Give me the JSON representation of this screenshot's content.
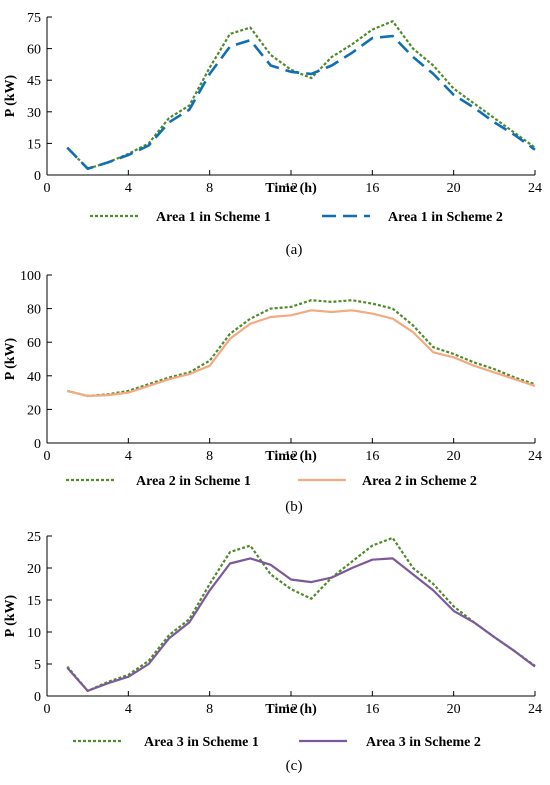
{
  "chart_data": [
    {
      "type": "line",
      "caption": "(a)",
      "xlabel": "Time (h)",
      "ylabel": "P (kW)",
      "xlim": [
        0,
        24
      ],
      "ylim": [
        0,
        75
      ],
      "xticks": [
        0,
        4,
        8,
        12,
        16,
        20,
        24
      ],
      "yticks": [
        0,
        15,
        30,
        45,
        60,
        75
      ],
      "x": [
        1,
        2,
        3,
        4,
        5,
        6,
        7,
        8,
        9,
        10,
        11,
        12,
        13,
        14,
        15,
        16,
        17,
        18,
        19,
        20,
        21,
        22,
        23,
        24
      ],
      "grid": false,
      "legend_position": "bottom",
      "series": [
        {
          "name": "Area 1 in Scheme 1",
          "color": "#4f8a2b",
          "dash": "dotted",
          "values": [
            13,
            3,
            6,
            10,
            15,
            27,
            33,
            51,
            67,
            70,
            57,
            50,
            46,
            56,
            62,
            69,
            73,
            60,
            52,
            41,
            34,
            27,
            20,
            13
          ]
        },
        {
          "name": "Area 1 in Scheme 2",
          "color": "#0f6fb3",
          "dash": "dashed",
          "values": [
            13,
            3,
            6,
            9.5,
            14,
            25,
            31,
            48,
            61,
            64,
            52,
            49,
            48,
            52,
            58,
            65,
            66,
            56,
            48,
            38,
            32,
            25,
            19,
            12
          ]
        }
      ]
    },
    {
      "type": "line",
      "caption": "(b)",
      "xlabel": "Time (h)",
      "ylabel": "P (kW)",
      "xlim": [
        0,
        24
      ],
      "ylim": [
        0,
        100
      ],
      "xticks": [
        0,
        4,
        8,
        12,
        16,
        20,
        24
      ],
      "yticks": [
        0,
        20,
        40,
        60,
        80,
        100
      ],
      "x": [
        1,
        2,
        3,
        4,
        5,
        6,
        7,
        8,
        9,
        10,
        11,
        12,
        13,
        14,
        15,
        16,
        17,
        18,
        19,
        20,
        21,
        22,
        23,
        24
      ],
      "grid": false,
      "legend_position": "bottom",
      "series": [
        {
          "name": "Area 2 in Scheme 1",
          "color": "#4f8a2b",
          "dash": "dotted",
          "values": [
            31,
            28,
            29,
            31,
            35,
            39,
            42,
            49,
            65,
            74,
            80,
            81,
            85,
            84,
            85,
            83,
            80,
            70,
            57,
            53,
            48,
            44,
            39,
            35
          ]
        },
        {
          "name": "Area 2 in Scheme 2",
          "color": "#f4aa80",
          "dash": "solid",
          "values": [
            31,
            28,
            28.5,
            30,
            34,
            38,
            41,
            46,
            62,
            71,
            75,
            76,
            79,
            78,
            79,
            77,
            74,
            66,
            54,
            51,
            46,
            42,
            38,
            34
          ]
        }
      ]
    },
    {
      "type": "line",
      "caption": "(c)",
      "xlabel": "Time (h)",
      "ylabel": "P (kW)",
      "xlim": [
        0,
        24
      ],
      "ylim": [
        0,
        25
      ],
      "xticks": [
        0,
        4,
        8,
        12,
        16,
        20,
        24
      ],
      "yticks": [
        0,
        5,
        10,
        15,
        20,
        25
      ],
      "x": [
        1,
        2,
        3,
        4,
        5,
        6,
        7,
        8,
        9,
        10,
        11,
        12,
        13,
        14,
        15,
        16,
        17,
        18,
        19,
        20,
        21,
        22,
        23,
        24
      ],
      "grid": false,
      "legend_position": "bottom",
      "series": [
        {
          "name": "Area 3 in Scheme 1",
          "color": "#4f8a2b",
          "dash": "dotted",
          "values": [
            4.6,
            0.8,
            2.2,
            3.3,
            5.5,
            9.5,
            12,
            17.5,
            22.5,
            23.5,
            19,
            16.7,
            15.2,
            18.5,
            21,
            23.5,
            24.7,
            20,
            17.5,
            14,
            11.5,
            9.2,
            7,
            4.7
          ]
        },
        {
          "name": "Area 3 in Scheme 2",
          "color": "#7b5a9a",
          "dash": "solid",
          "values": [
            4.4,
            0.8,
            2,
            3,
            5,
            9,
            11.5,
            16.5,
            20.7,
            21.5,
            20.5,
            18.2,
            17.8,
            18.5,
            20,
            21.3,
            21.5,
            19,
            16.5,
            13.3,
            11.5,
            9.2,
            7,
            4.6
          ]
        }
      ]
    }
  ]
}
